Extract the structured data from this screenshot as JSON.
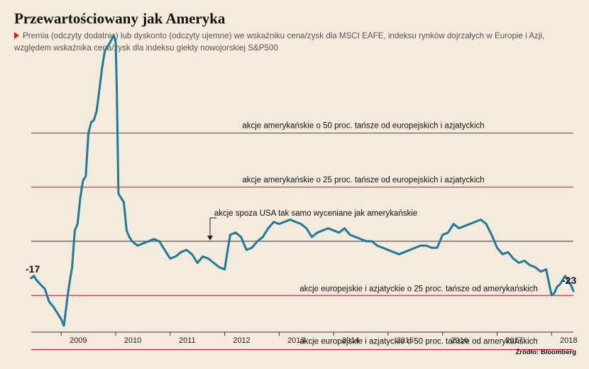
{
  "chart_data": {
    "type": "line",
    "title": "Przewartościowany jak Ameryka",
    "subtitle": "Premia (odczyty dodatnie) lub dyskonto (odczyty ujemne) we wskaźniku cena/zysk dla MSCI EAFE, indeksu rynków dojrzałych w Europie i Azji, względem wskaźnika cena/zysk dla indeksu giełdy nowojorskiej S&P500",
    "x_ticks": [
      "2009",
      "2010",
      "2011",
      "2012",
      "2013",
      "2014",
      "2015",
      "2016",
      "2017",
      "2018"
    ],
    "xlim": [
      2008.45,
      2018.4
    ],
    "ylim": [
      -60,
      105
    ],
    "reference_lines": [
      {
        "value": 50,
        "label": "akcje amerykańskie o 50 proc. tańsze od europejskich i azjatyckich",
        "color": "#c8102e"
      },
      {
        "value": 25,
        "label": "akcje amerykańskie o 25 proc. tańsze od europejskich i azjatyckich",
        "color": "#c8102e"
      },
      {
        "value": 0,
        "label": "akcje spoza USA tak samo wyceniane jak amerykańskie",
        "color": "#555555"
      },
      {
        "value": -25,
        "label": "akcje europejskie i azjatyckie o 25 proc. tańsze od amerykańskich",
        "color": "#c8102e"
      },
      {
        "value": -50,
        "label": "akcje europejskie i azjatyckie o 50 proc. tańsze od amerykańskich",
        "color": "#c8102e"
      }
    ],
    "series": [
      {
        "color": "#1d7a99",
        "x": [
          2008.45,
          2008.5,
          2008.55,
          2008.62,
          2008.7,
          2008.78,
          2008.85,
          2008.9,
          2008.95,
          2009.0,
          2009.05,
          2009.08,
          2009.12,
          2009.16,
          2009.2,
          2009.25,
          2009.3,
          2009.35,
          2009.4,
          2009.45,
          2009.5,
          2009.55,
          2009.6,
          2009.65,
          2009.7,
          2009.75,
          2009.8,
          2009.85,
          2009.9,
          2009.94,
          2009.97,
          2010.0,
          2010.02,
          2010.05,
          2010.1,
          2010.15,
          2010.2,
          2010.25,
          2010.3,
          2010.4,
          2010.5,
          2010.6,
          2010.7,
          2010.8,
          2010.9,
          2011.0,
          2011.1,
          2011.2,
          2011.3,
          2011.4,
          2011.5,
          2011.6,
          2011.7,
          2011.8,
          2011.9,
          2012.0,
          2012.05,
          2012.1,
          2012.2,
          2012.3,
          2012.4,
          2012.5,
          2012.6,
          2012.7,
          2012.8,
          2012.9,
          2013.0,
          2013.1,
          2013.2,
          2013.3,
          2013.4,
          2013.5,
          2013.6,
          2013.7,
          2013.8,
          2013.9,
          2014.0,
          2014.1,
          2014.2,
          2014.3,
          2014.4,
          2014.5,
          2014.6,
          2014.7,
          2014.8,
          2014.9,
          2015.0,
          2015.1,
          2015.2,
          2015.3,
          2015.4,
          2015.5,
          2015.6,
          2015.7,
          2015.8,
          2015.9,
          2016.0,
          2016.1,
          2016.2,
          2016.3,
          2016.4,
          2016.5,
          2016.6,
          2016.7,
          2016.8,
          2016.9,
          2017.0,
          2017.1,
          2017.2,
          2017.3,
          2017.4,
          2017.5,
          2017.6,
          2017.7,
          2017.8,
          2017.9,
          2018.0,
          2018.05,
          2018.1,
          2018.15,
          2018.2,
          2018.25,
          2018.3,
          2018.35,
          2018.4
        ],
        "y": [
          -17,
          -16,
          -18,
          -20,
          -22,
          -28,
          -30,
          -32,
          -34,
          -36,
          -39,
          -33,
          -25,
          -18,
          -12,
          5,
          8,
          20,
          28,
          30,
          50,
          55,
          56,
          60,
          70,
          80,
          88,
          90,
          92,
          94,
          95,
          92,
          70,
          22,
          20,
          18,
          5,
          2,
          0,
          -2,
          -1,
          0,
          1,
          0,
          -4,
          -8,
          -7,
          -5,
          -4,
          -6,
          -10,
          -7,
          -8,
          -10,
          -12,
          -13,
          -5,
          3,
          4,
          2,
          -4,
          -3,
          0,
          2,
          6,
          9,
          8,
          9,
          10,
          9,
          8,
          6,
          2,
          4,
          5,
          6,
          5,
          4,
          6,
          3,
          2,
          1,
          0,
          0,
          -2,
          -3,
          -4,
          -5,
          -6,
          -5,
          -4,
          -3,
          -2,
          -2,
          -3,
          -3,
          3,
          4,
          8,
          6,
          7,
          8,
          9,
          10,
          8,
          3,
          -3,
          -6,
          -5,
          -8,
          -10,
          -9,
          -11,
          -12,
          -14,
          -13,
          -25,
          -24,
          -21,
          -20,
          -18,
          -16,
          -18,
          -20,
          -23
        ]
      }
    ],
    "annotations": {
      "start_value": "-17",
      "end_value": "-23"
    },
    "source": "Źródło: Bloomberg"
  }
}
